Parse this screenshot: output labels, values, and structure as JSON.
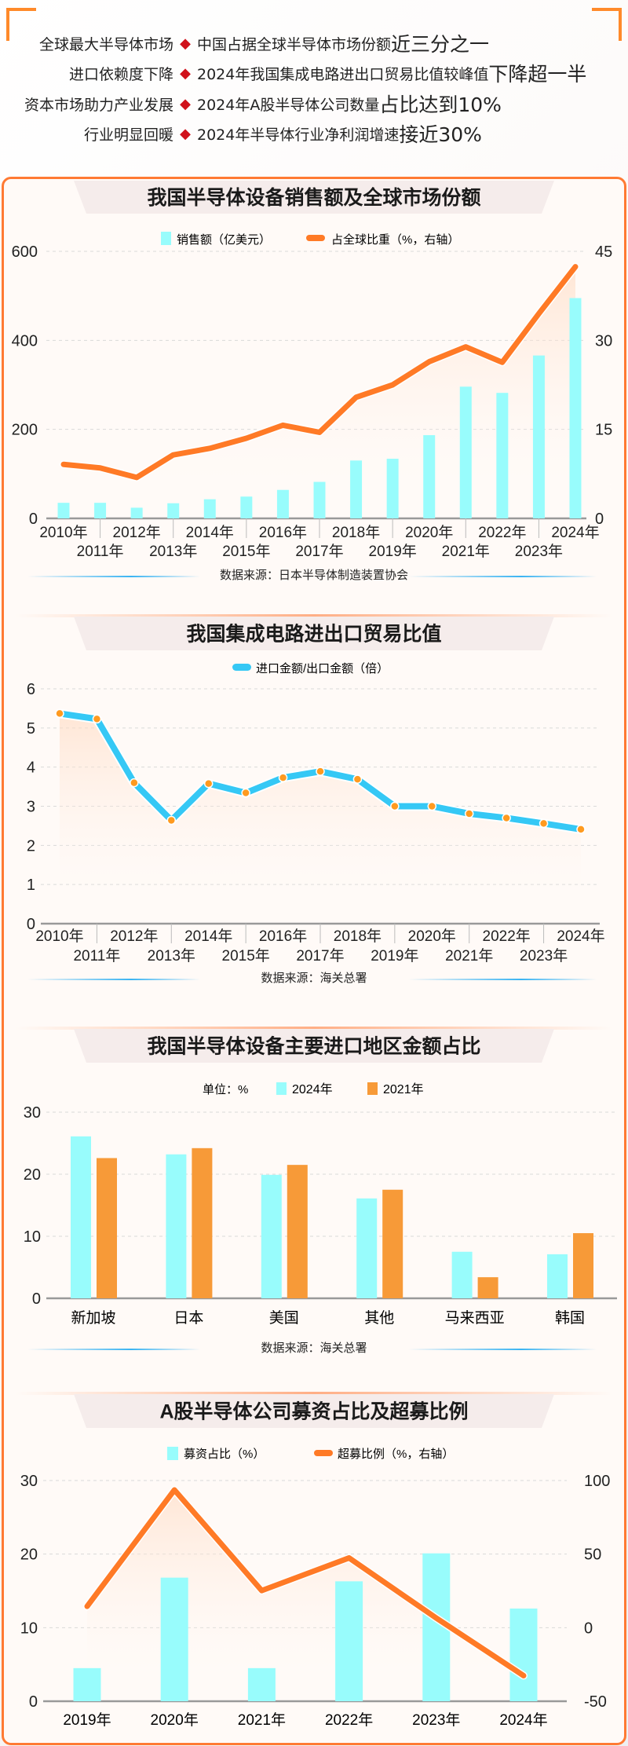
{
  "header": {
    "lines": [
      {
        "label": "全球最大半导体市场",
        "text": "中国占据全球半导体市场份额",
        "emphasis": "近三分之一"
      },
      {
        "label": "进口依赖度下降",
        "text": "2024年我国集成电路进出口贸易比值较峰值",
        "emphasis": "下降超一半"
      },
      {
        "label": "资本市场助力产业发展",
        "text": "2024年A股半导体公司数量",
        "emphasis": "占比达到10%"
      },
      {
        "label": "行业明显回暖",
        "text": "2024年半导体行业净利润增速",
        "emphasis": "接近30%"
      }
    ],
    "bullet": "◆"
  },
  "colors": {
    "cyan": "#98fcfc",
    "orange_line": "#ff7a26",
    "blue_line": "#35c8f5",
    "dot": "#ff9a1f",
    "orange_bar": "#f79a38",
    "border": "#ff7a33"
  },
  "chart_data": [
    {
      "type": "bar+line",
      "title": "我国半导体设备销售额及全球市场份额",
      "categories": [
        "2010年",
        "2011年",
        "2012年",
        "2013年",
        "2014年",
        "2015年",
        "2016年",
        "2017年",
        "2018年",
        "2019年",
        "2020年",
        "2021年",
        "2022年",
        "2023年",
        "2024年"
      ],
      "series": [
        {
          "name": "销售额（亿美元）",
          "type": "bar",
          "axis": "left",
          "values": [
            35,
            35,
            24,
            34,
            43,
            49,
            64,
            82,
            130,
            134,
            187,
            296,
            282,
            366,
            495
          ]
        },
        {
          "name": "占全球比重（%，右轴）",
          "type": "line",
          "axis": "right",
          "values": [
            9.1,
            8.5,
            6.9,
            10.7,
            11.8,
            13.5,
            15.7,
            14.5,
            20.4,
            22.5,
            26.4,
            28.9,
            26.3,
            34.5,
            42.4
          ]
        }
      ],
      "ylim": [
        0,
        600
      ],
      "yticks": [
        "0",
        "200",
        "400",
        "600"
      ],
      "y2lim": [
        0,
        45
      ],
      "y2ticks": [
        "0",
        "15",
        "30",
        "45"
      ],
      "grid": true,
      "legend": "top-center",
      "source": "数据来源：日本半导体制造装置协会"
    },
    {
      "type": "line",
      "title": "我国集成电路进出口贸易比值",
      "categories": [
        "2010年",
        "2011年",
        "2012年",
        "2013年",
        "2014年",
        "2015年",
        "2016年",
        "2017年",
        "2018年",
        "2019年",
        "2020年",
        "2021年",
        "2022年",
        "2023年",
        "2024年"
      ],
      "series": [
        {
          "name": "进口金额/出口金额（倍）",
          "values": [
            5.37,
            5.23,
            3.6,
            2.64,
            3.58,
            3.34,
            3.73,
            3.89,
            3.69,
            3.0,
            3.0,
            2.81,
            2.7,
            2.56,
            2.41
          ]
        }
      ],
      "ylim": [
        0,
        6
      ],
      "yticks": [
        "0",
        "1",
        "2",
        "3",
        "4",
        "5",
        "6"
      ],
      "grid": true,
      "legend": "top-center",
      "source": "数据来源：海关总署"
    },
    {
      "type": "bar",
      "title": "我国半导体设备主要进口地区金额占比",
      "unit": "单位：%",
      "categories": [
        "新加坡",
        "日本",
        "美国",
        "其他",
        "马来西亚",
        "韩国"
      ],
      "series": [
        {
          "name": "2024年",
          "values": [
            26.1,
            23.2,
            19.9,
            16.1,
            7.5,
            7.1
          ]
        },
        {
          "name": "2021年",
          "values": [
            22.6,
            24.2,
            21.5,
            17.5,
            3.4,
            10.5
          ]
        }
      ],
      "ylim": [
        0,
        30
      ],
      "yticks": [
        "0",
        "10",
        "20",
        "30"
      ],
      "grid": true,
      "legend": "top-center",
      "source": "数据来源：海关总署"
    },
    {
      "type": "bar+line",
      "title": "A股半导体公司募资占比及超募比例",
      "categories": [
        "2019年",
        "2020年",
        "2021年",
        "2022年",
        "2023年",
        "2024年"
      ],
      "series": [
        {
          "name": "募资占比（%）",
          "type": "bar",
          "axis": "left",
          "values": [
            4.5,
            16.8,
            4.5,
            16.3,
            20.1,
            12.6
          ]
        },
        {
          "name": "超募比例（%，右轴）",
          "type": "line",
          "axis": "right",
          "values": [
            14.5,
            93.6,
            25.2,
            47.4,
            6.5,
            -32.6
          ]
        }
      ],
      "ylim": [
        0,
        30
      ],
      "yticks": [
        "0",
        "10",
        "20",
        "30"
      ],
      "y2lim": [
        -50,
        100
      ],
      "y2ticks": [
        "-50",
        "0",
        "50",
        "100"
      ],
      "grid": true,
      "legend": "top-center"
    }
  ]
}
